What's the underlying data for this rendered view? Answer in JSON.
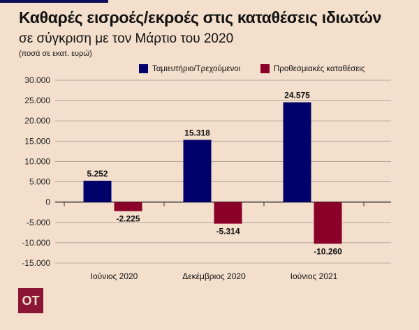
{
  "header": {
    "title": "Καθαρές εισροές/εκροές στις καταθέσεις ιδιωτών",
    "subtitle": "σε σύγκριση με τον Μάρτιο του 2020",
    "unit": "(ποσά σε εκατ. ευρώ)"
  },
  "logo": "OT",
  "chart_data": {
    "type": "bar",
    "title": "Καθαρές εισροές/εκροές στις καταθέσεις ιδιωτών",
    "categories": [
      "Ιούνιος 2020",
      "Δεκέμβριος 2020",
      "Ιούνιος 2021"
    ],
    "series": [
      {
        "name": "Ταμιευτήριο/Τρεχούμενοι",
        "color": "#00006a",
        "values": [
          5252,
          15318,
          24575
        ],
        "labels": [
          "5.252",
          "15.318",
          "24.575"
        ]
      },
      {
        "name": "Προθεσμιακές καταθέσεις",
        "color": "#8a0029",
        "values": [
          -2225,
          -5314,
          -10260
        ],
        "labels": [
          "-2.225",
          "-5.314",
          "-10.260"
        ]
      }
    ],
    "ylim": [
      -15000,
      30000
    ],
    "yticks": [
      30000,
      25000,
      20000,
      15000,
      10000,
      5000,
      0,
      -5000,
      -10000,
      -15000
    ],
    "ytick_labels": [
      "30.000",
      "25.000",
      "20.000",
      "15.000",
      "10.000",
      "5.000",
      "0",
      "-5.000",
      "-10.000",
      "-15.000"
    ],
    "grid": true,
    "legend": "top-right"
  }
}
